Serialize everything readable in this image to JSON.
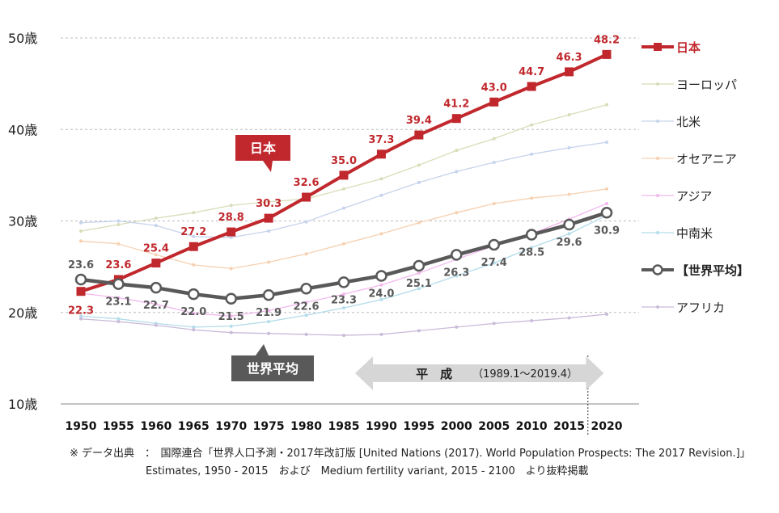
{
  "chart_data": {
    "type": "line",
    "x": [
      1950,
      1955,
      1960,
      1965,
      1970,
      1975,
      1980,
      1985,
      1990,
      1995,
      2000,
      2005,
      2010,
      2015,
      2020
    ],
    "x_tick_labels": [
      "1950",
      "1955",
      "1960",
      "1965",
      "1970",
      "1975",
      "1980",
      "1985",
      "1990",
      "1995",
      "2000",
      "2005",
      "2010",
      "2015",
      "2020"
    ],
    "y_tick_labels": [
      "10歳",
      "20歳",
      "30歳",
      "40歳",
      "50歳"
    ],
    "y_ticks": [
      10,
      20,
      30,
      40,
      50
    ],
    "ylim": [
      10,
      50
    ],
    "grid": "horizontal dashed",
    "legend_position": "right",
    "series": [
      {
        "name": "日本",
        "color": "#c0282d",
        "style": "bold-square",
        "values": [
          22.3,
          23.6,
          25.4,
          27.2,
          28.8,
          30.3,
          32.6,
          35.0,
          37.3,
          39.4,
          41.2,
          43.0,
          44.7,
          46.3,
          48.2
        ],
        "labels": [
          "22.3",
          "23.6",
          "25.4",
          "27.2",
          "28.8",
          "30.3",
          "32.6",
          "35.0",
          "37.3",
          "39.4",
          "41.2",
          "43.0",
          "44.7",
          "46.3",
          "48.2"
        ]
      },
      {
        "name": "ヨーロッパ",
        "color": "#d9dcb8",
        "style": "thin",
        "values": [
          28.9,
          29.6,
          30.3,
          30.9,
          31.7,
          32.1,
          32.4,
          33.5,
          34.6,
          36.1,
          37.7,
          39.0,
          40.5,
          41.6,
          42.7
        ]
      },
      {
        "name": "北米",
        "color": "#c5d3ec",
        "style": "thin",
        "values": [
          29.8,
          30.0,
          29.5,
          28.3,
          28.2,
          28.9,
          29.9,
          31.4,
          32.8,
          34.2,
          35.4,
          36.4,
          37.3,
          38.0,
          38.6
        ]
      },
      {
        "name": "オセアニア",
        "color": "#f6d0b0",
        "style": "thin",
        "values": [
          27.8,
          27.5,
          26.3,
          25.2,
          24.8,
          25.5,
          26.4,
          27.5,
          28.6,
          29.8,
          30.9,
          31.9,
          32.5,
          32.9,
          33.5
        ]
      },
      {
        "name": "アジア",
        "color": "#f3b7ee",
        "style": "thin",
        "values": [
          22.1,
          21.6,
          20.9,
          19.9,
          19.6,
          20.2,
          21.1,
          22.0,
          23.0,
          24.3,
          25.8,
          27.3,
          28.6,
          30.2,
          31.9
        ]
      },
      {
        "name": "中南米",
        "color": "#b3dcea",
        "style": "thin",
        "values": [
          19.6,
          19.3,
          18.8,
          18.4,
          18.5,
          19.0,
          19.7,
          20.5,
          21.4,
          22.6,
          24.0,
          25.4,
          27.1,
          28.6,
          30.6
        ]
      },
      {
        "name": "【世界平均】",
        "color": "#595959",
        "style": "bold-circle",
        "values": [
          23.6,
          23.1,
          22.7,
          22.0,
          21.5,
          21.9,
          22.6,
          23.3,
          24.0,
          25.1,
          26.3,
          27.4,
          28.5,
          29.6,
          30.9
        ],
        "labels": [
          "23.6",
          "23.1",
          "22.7",
          "22.0",
          "21.5",
          "21.9",
          "22.6",
          "23.3",
          "24.0",
          "25.1",
          "26.3",
          "27.4",
          "28.5",
          "29.6",
          "30.9"
        ]
      },
      {
        "name": "アフリカ",
        "color": "#c9bbd9",
        "style": "thin",
        "values": [
          19.3,
          19.0,
          18.6,
          18.1,
          17.8,
          17.7,
          17.6,
          17.5,
          17.6,
          18.0,
          18.4,
          18.8,
          19.1,
          19.4,
          19.8
        ]
      }
    ],
    "callouts": {
      "japan": "日本",
      "world": "世界平均"
    },
    "era": {
      "label": "平　成",
      "range": "（1989.1～2019.4）",
      "start": 1989.1,
      "end": 2019.4
    }
  },
  "footnote": {
    "line1": "※ データ出典　：　国際連合「世界人口予測・2017年改訂版 [United Nations (2017). World Population Prospects: The 2017 Revision.]」",
    "line2": "Estimates, 1950 - 2015　および　Medium fertility variant, 2015 - 2100　より抜粋掲載"
  }
}
